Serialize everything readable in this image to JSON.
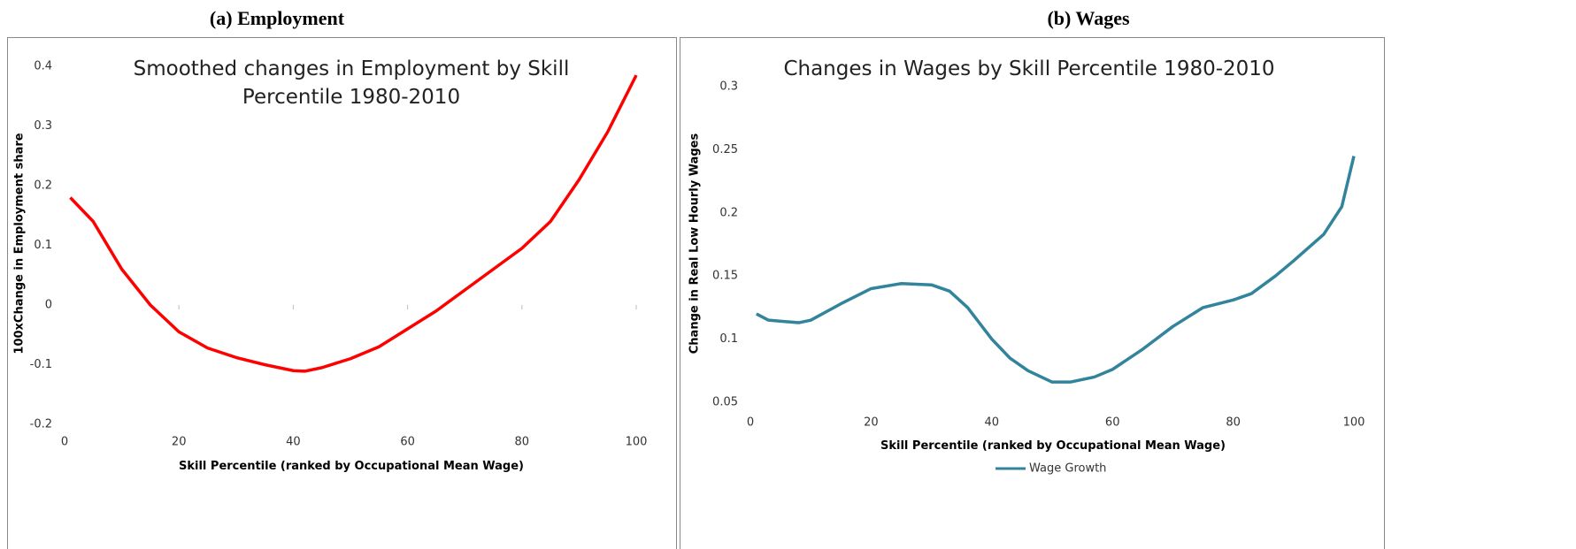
{
  "chart_data": [
    {
      "type": "line",
      "caption": "(a) Employment",
      "title": "Smoothed changes in Employment by Skill Percentile 1980-2010",
      "x_label": "Skill Percentile (ranked by Occupational Mean Wage)",
      "y_label": "100xChange in Employment share",
      "x": [
        1,
        5,
        10,
        15,
        20,
        25,
        30,
        35,
        40,
        42,
        45,
        50,
        55,
        60,
        65,
        70,
        75,
        80,
        85,
        90,
        95,
        100
      ],
      "series": [
        {
          "color": "#ff0000",
          "values": [
            0.18,
            0.14,
            0.06,
            0.0,
            -0.045,
            -0.072,
            -0.088,
            -0.1,
            -0.11,
            -0.111,
            -0.105,
            -0.09,
            -0.07,
            -0.04,
            -0.01,
            0.025,
            0.06,
            0.095,
            0.14,
            0.21,
            0.29,
            0.385
          ]
        }
      ],
      "xlim": [
        0,
        100
      ],
      "xticks": [
        0,
        20,
        40,
        60,
        80,
        100
      ],
      "ylim": [
        -0.2,
        0.4
      ],
      "yticks": [
        -0.2,
        -0.1,
        0,
        0.1,
        0.2,
        0.3,
        0.4
      ],
      "legend": false
    },
    {
      "type": "line",
      "caption": "(b) Wages",
      "title": "Changes in Wages by Skill Percentile 1980-2010",
      "x_label": "Skill Percentile (ranked by Occupational Mean Wage)",
      "y_label": "Change in Real Low Hourly Wages",
      "x": [
        1,
        3,
        8,
        10,
        15,
        20,
        25,
        30,
        33,
        36,
        40,
        43,
        46,
        50,
        53,
        57,
        60,
        65,
        70,
        75,
        80,
        83,
        87,
        90,
        95,
        98,
        100
      ],
      "series": [
        {
          "name": "Wage Growth",
          "color": "#31849b",
          "values": [
            0.12,
            0.115,
            0.113,
            0.115,
            0.128,
            0.14,
            0.144,
            0.143,
            0.138,
            0.125,
            0.1,
            0.085,
            0.075,
            0.066,
            0.066,
            0.07,
            0.076,
            0.092,
            0.11,
            0.125,
            0.131,
            0.136,
            0.15,
            0.162,
            0.183,
            0.205,
            0.245
          ]
        }
      ],
      "xlim": [
        0,
        100
      ],
      "xticks": [
        0,
        20,
        40,
        60,
        80,
        100
      ],
      "ylim": [
        0.05,
        0.3
      ],
      "yticks": [
        0.05,
        0.1,
        0.15,
        0.2,
        0.25,
        0.3
      ],
      "legend": true
    }
  ]
}
